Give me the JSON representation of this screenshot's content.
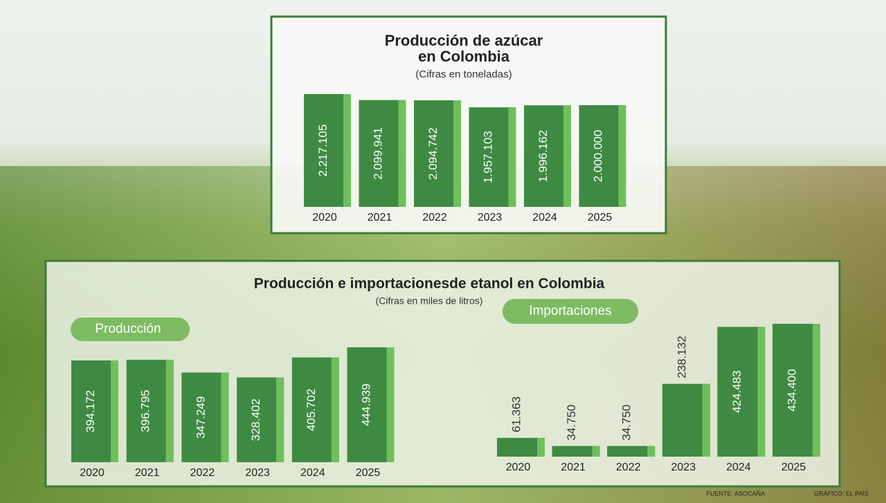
{
  "chart_data": [
    {
      "type": "bar",
      "title": "Producción de azúcar en Colombia",
      "subtitle": "(Cifras en toneladas)",
      "categories": [
        "2020",
        "2021",
        "2022",
        "2023",
        "2024",
        "2025"
      ],
      "values": [
        2217105,
        2099941,
        2094742,
        1957103,
        1996162,
        2000000
      ],
      "value_labels": [
        "2.217.105",
        "2.099.941",
        "2.094.742",
        "1.957.103",
        "1.996.162",
        "2.000.000"
      ],
      "color": "#3f8a42"
    },
    {
      "type": "bar",
      "title": "Producción",
      "categories": [
        "2020",
        "2021",
        "2022",
        "2023",
        "2024",
        "2025"
      ],
      "values": [
        394172,
        396795,
        347249,
        328402,
        405702,
        444939
      ],
      "value_labels": [
        "394.172",
        "396.795",
        "347.249",
        "328.402",
        "405.702",
        "444.939"
      ],
      "color": "#3f8a42"
    },
    {
      "type": "bar",
      "title": "Importaciones",
      "categories": [
        "2020",
        "2021",
        "2022",
        "2023",
        "2024",
        "2025"
      ],
      "values": [
        61363,
        34750,
        34750,
        238132,
        424483,
        434400
      ],
      "value_labels": [
        "61.363",
        "34.750",
        "34.750",
        "238.132",
        "424.483",
        "434.400"
      ],
      "color": "#3f8a42"
    }
  ],
  "ethanol_panel": {
    "title": "Producción e importacionesde etanol en Colombia",
    "subtitle": "(Cifras en miles de litros)"
  },
  "footer": {
    "source": "FUENTE: ASOCAÑA",
    "credit": "GRÁFICO: EL PAÍS"
  }
}
